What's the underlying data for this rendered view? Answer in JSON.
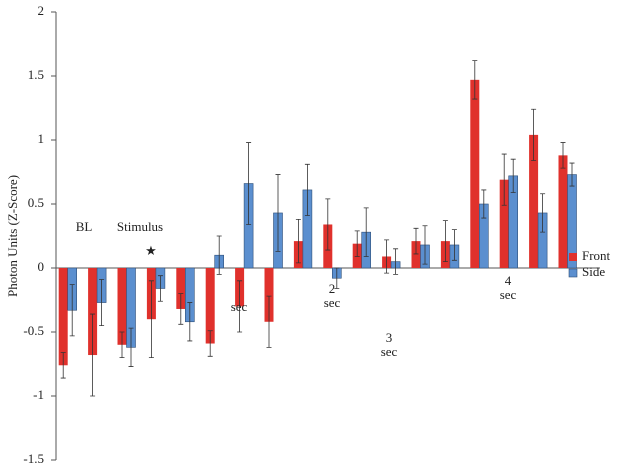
{
  "chart_data": {
    "type": "bar",
    "y_label": "Photon Units (Z-Score)",
    "categories": [
      null,
      null,
      null,
      null,
      null,
      null,
      null,
      null,
      null,
      null,
      null,
      null,
      null,
      null,
      null,
      null,
      null,
      null
    ],
    "series": [
      {
        "name": "Front",
        "color": "#e0312c",
        "values": [
          -0.76,
          -0.68,
          -0.6,
          -0.4,
          -0.32,
          -0.59,
          -0.3,
          -0.42,
          0.21,
          0.34,
          0.19,
          0.09,
          0.21,
          0.21,
          1.47,
          0.69,
          1.04,
          0.88
        ],
        "errors": [
          0.1,
          0.32,
          0.1,
          0.3,
          0.12,
          0.1,
          0.2,
          0.2,
          0.17,
          0.2,
          0.1,
          0.13,
          0.1,
          0.16,
          0.15,
          0.2,
          0.2,
          0.1
        ]
      },
      {
        "name": "Side",
        "color": "#5b8fcf",
        "values": [
          -0.33,
          -0.27,
          -0.62,
          -0.16,
          -0.42,
          0.1,
          0.66,
          0.43,
          0.61,
          -0.08,
          0.28,
          0.05,
          0.18,
          0.18,
          0.5,
          0.72,
          0.43,
          0.73
        ],
        "errors": [
          0.2,
          0.18,
          0.15,
          0.1,
          0.15,
          0.15,
          0.32,
          0.3,
          0.2,
          0.08,
          0.19,
          0.1,
          0.15,
          0.12,
          0.11,
          0.13,
          0.15,
          0.09
        ]
      }
    ],
    "annotations": [
      "BL",
      "Stimulus",
      "★",
      "sec",
      "2",
      "sec",
      "3",
      "sec",
      "4",
      "sec"
    ],
    "ylim": [
      -1.5,
      2
    ],
    "yticks": [
      -1.5,
      -1,
      -0.5,
      0,
      0.5,
      1,
      1.5,
      2
    ],
    "legend": "right"
  }
}
